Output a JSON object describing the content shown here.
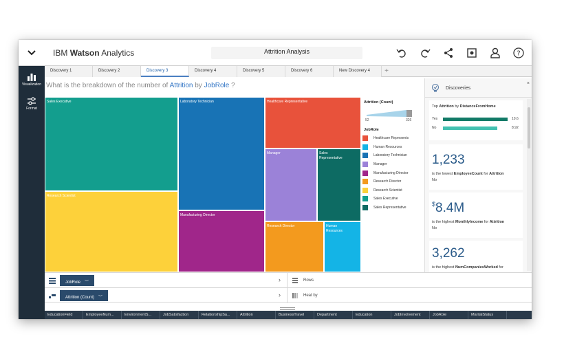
{
  "header": {
    "brand_ibm": "IBM",
    "brand_watson": "Watson",
    "brand_analytics": "Analytics",
    "title": "Attrition Analysis"
  },
  "rail": {
    "visualization": "Visualization",
    "format": "Format"
  },
  "tabs": [
    {
      "label": "Discovery 1"
    },
    {
      "label": "Discovery 2"
    },
    {
      "label": "Discovery 3",
      "active": true
    },
    {
      "label": "Discovery 4"
    },
    {
      "label": "Discovery 5"
    },
    {
      "label": "Discovery 6"
    },
    {
      "label": "New Discovery 4"
    }
  ],
  "question": {
    "prefix": "What is the breakdown of the number of",
    "measure": "Attrition",
    "by": "by",
    "dimension": "JobRole",
    "suffix": "?"
  },
  "treemap": {
    "cells": [
      {
        "label": "Sales Executive",
        "color": "#139e8e"
      },
      {
        "label": "Research Scientist",
        "color": "#fdd13a"
      },
      {
        "label": "Laboratory Technician",
        "color": "#1873b5"
      },
      {
        "label": "Manufacturing Director",
        "color": "#a0268a"
      },
      {
        "label": "Healthcare Representative",
        "color": "#e8523b"
      },
      {
        "label": "Manager",
        "color": "#9b82d8"
      },
      {
        "label": "Sales Representative",
        "color": "#0d6b63"
      },
      {
        "label": "Research Director",
        "color": "#f39a1e"
      },
      {
        "label": "Human Resources",
        "color": "#14b4e6"
      }
    ]
  },
  "legend": {
    "title": "Attrition (Count)",
    "min": "52",
    "max": "326",
    "sub_title": "JobRole",
    "items": [
      {
        "label": "Healthcare Represents",
        "color": "#e8523b"
      },
      {
        "label": "Human Resources",
        "color": "#14b4e6"
      },
      {
        "label": "Laboratory Technician",
        "color": "#1873b5"
      },
      {
        "label": "Manager",
        "color": "#9b82d8"
      },
      {
        "label": "Manufacturing Director",
        "color": "#a0268a"
      },
      {
        "label": "Research Director",
        "color": "#f39a1e"
      },
      {
        "label": "Research Scientist",
        "color": "#fdd13a"
      },
      {
        "label": "Sales Executive",
        "color": "#139e8e"
      },
      {
        "label": "Sales Representative",
        "color": "#0d6b63"
      }
    ]
  },
  "discoveries": {
    "title": "Discoveries",
    "close": "×",
    "top_card": {
      "prefix": "Top",
      "measure": "Attrition",
      "by": "by",
      "dimension": "DistanceFromHome",
      "rows": [
        {
          "label": "Yes",
          "value": "10.6",
          "fraction": 1.0,
          "color": "#127a67"
        },
        {
          "label": "No",
          "value": "8.92",
          "fraction": 0.84,
          "color": "#43c1b1"
        }
      ]
    },
    "cards": [
      {
        "value": "1,233",
        "prefix": "",
        "pre": "is the lowest",
        "field": "EmployeeCount",
        "for": "for",
        "target": "Attrition",
        "sub": "No"
      },
      {
        "value": "8.4M",
        "prefix": "$",
        "pre": "is the highest",
        "field": "MonthlyIncome",
        "for": "for",
        "target": "Attrition",
        "sub": "No"
      },
      {
        "value": "3,262",
        "prefix": "",
        "pre": "is the highest",
        "field": "NumCompaniesWorked",
        "for": "for",
        "target": "",
        "sub": ""
      }
    ]
  },
  "shelves": {
    "row1_pill": "JobRole",
    "row1_right": "Rows",
    "row2_pill": "Attrition (Count)",
    "row2_right": "Heat by"
  },
  "columns": [
    "EducationField",
    "EmployeeNum...",
    "EnvironmentS...",
    "JobSatisfaction",
    "RelationshipSa...",
    "Attrition",
    "BusinessTravel",
    "Department",
    "Education",
    "JobInvolvement",
    "JobRole",
    "MaritalStatus"
  ]
}
